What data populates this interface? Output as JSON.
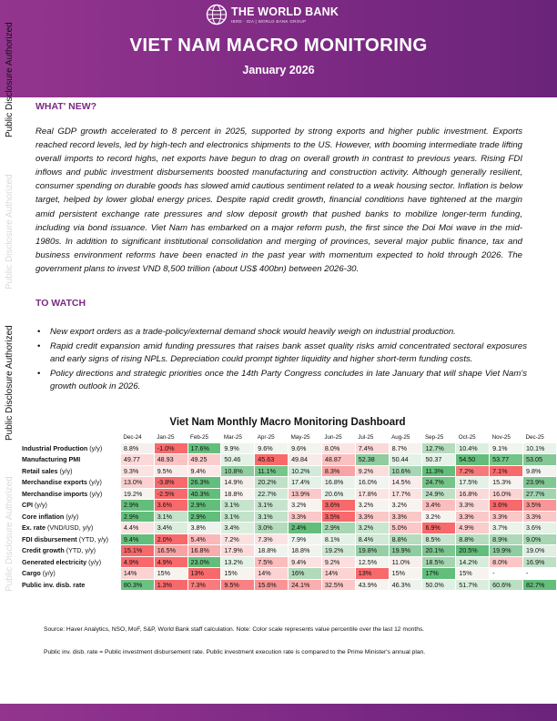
{
  "header": {
    "org_name": "THE WORLD BANK",
    "org_sub": "IBRD · IDA | WORLD BANK GROUP",
    "title": "VIET NAM MACRO MONITORING",
    "date": "January 2026"
  },
  "side_label": "Public Disclosure Authorized",
  "whats_new": {
    "heading": "WHAT' NEW?",
    "text": "Real GDP growth accelerated to 8 percent in 2025, supported by strong exports and higher public investment. Exports reached record levels, led by high-tech and electronics shipments to the US. However, with booming intermediate trade lifting overall imports to record highs, net exports have begun to drag on overall growth in contrast to previous years. Rising FDI inflows and public investment disbursements boosted manufacturing and construction activity. Although generally resilient, consumer spending on durable goods has slowed amid cautious sentiment related to a weak housing sector. Inflation is below target, helped by lower global energy prices. Despite rapid credit growth, financial conditions have tightened at the margin amid persistent exchange rate pressures and slow deposit growth that pushed banks to mobilize longer-term funding, including via bond issuance. Viet Nam has embarked on a major reform push, the first since the Doi Moi wave in the mid-1980s. In addition to significant institutional consolidation and merging of provinces, several major public finance, tax and business environment reforms have been enacted in the past year with momentum expected to hold through 2026. The government plans to invest VND 8,500 trillion (about US$ 400bn) between 2026-30."
  },
  "to_watch": {
    "heading": "TO WATCH",
    "items": [
      "New export orders as a trade-policy/external demand shock would heavily weigh on industrial production.",
      "Rapid credit expansion amid funding pressures that raises bank asset quality risks amid concentrated sectoral exposures and early signs of rising NPLs. Depreciation could prompt tighter liquidity and higher short-term funding costs.",
      "Policy directions and strategic priorities once the 14th Party Congress concludes in late January that will shape Viet Nam's growth outlook in 2026."
    ]
  },
  "dashboard": {
    "title": "Viet Nam Monthly Macro Monitoring Dashboard",
    "columns": [
      "Dec-24",
      "Jan-25",
      "Feb-25",
      "Mar-25",
      "Apr-25",
      "May-25",
      "Jun-25",
      "Jul-25",
      "Aug-25",
      "Sep-25",
      "Oct-25",
      "Nov-25",
      "Dec-25"
    ],
    "rows": [
      {
        "label": "Industrial Production",
        "unit": "(y/y)",
        "values": [
          "8.8%",
          "-1.0%",
          "17.6%",
          "9.9%",
          "9.6%",
          "9.6%",
          "8.0%",
          "7.4%",
          "8.7%",
          "12.7%",
          "10.4%",
          "9.1%",
          "10.1%"
        ],
        "colors": [
          "#f5f0ed",
          "#f8696b",
          "#63be7b",
          "#eef5ee",
          "#f2f4ef",
          "#f2f4ef",
          "#fbe5e4",
          "#fbd9d9",
          "#f7f2ef",
          "#b5dcbd",
          "#dcefdf",
          "#f1f4ef",
          "#e8f3ea"
        ]
      },
      {
        "label": "Manufacturing PMI",
        "unit": "",
        "values": [
          "49.77",
          "48.93",
          "49.25",
          "50.46",
          "45.63",
          "49.84",
          "48.87",
          "52.38",
          "50.44",
          "50.37",
          "54.50",
          "53.77",
          "53.05"
        ],
        "colors": [
          "#fbd9d9",
          "#fbc3c3",
          "#fbcccc",
          "#e2f1e5",
          "#f8696b",
          "#f8eae9",
          "#fbc0c0",
          "#8fcc9f",
          "#e3f1e6",
          "#e6f2e8",
          "#63be7b",
          "#72c487",
          "#84c896"
        ]
      },
      {
        "label": "Retail sales",
        "unit": "(y/y)",
        "values": [
          "9.3%",
          "9.5%",
          "9.4%",
          "10.8%",
          "11.1%",
          "10.2%",
          "8.3%",
          "9.2%",
          "10.6%",
          "11.3%",
          "7.2%",
          "7.1%",
          "9.8%"
        ],
        "colors": [
          "#fbe3e2",
          "#faeceb",
          "#fbe8e7",
          "#90cd9f",
          "#76c589",
          "#d2eada",
          "#f9a3a4",
          "#fadedd",
          "#a7d6b4",
          "#63be7b",
          "#f8797b",
          "#f8696b",
          "#f2f4ef"
        ]
      },
      {
        "label": "Merchandise exports",
        "unit": "(y/y)",
        "values": [
          "13.0%",
          "-3.8%",
          "26.3%",
          "14.9%",
          "20.2%",
          "17.4%",
          "16.8%",
          "16.0%",
          "14.5%",
          "24.7%",
          "17.5%",
          "15.3%",
          "23.9%"
        ],
        "colors": [
          "#fcd0d0",
          "#f8696b",
          "#63be7b",
          "#f5efec",
          "#c0e1c7",
          "#e4f1e7",
          "#eaf3eb",
          "#f2f4ef",
          "#faeceb",
          "#75c488",
          "#e3f1e6",
          "#f7f4f0",
          "#80c893"
        ]
      },
      {
        "label": "Merchandise imports",
        "unit": "(y/y)",
        "values": [
          "19.2%",
          "-2.5%",
          "40.3%",
          "18.8%",
          "22.7%",
          "13.9%",
          "20.6%",
          "17.8%",
          "17.7%",
          "24.9%",
          "16.8%",
          "16.0%",
          "27.7%"
        ],
        "colors": [
          "#f7f4f0",
          "#f8696b",
          "#63be7b",
          "#f9f3f0",
          "#d2e9d8",
          "#fcc9c9",
          "#e8f3ea",
          "#fbe5e4",
          "#fbe3e2",
          "#bfe0c6",
          "#fbdad9",
          "#fbd4d3",
          "#a3d4b0"
        ]
      },
      {
        "label": "CPI",
        "unit": "(y/y)",
        "values": [
          "2.9%",
          "3.6%",
          "2.9%",
          "3.1%",
          "3.1%",
          "3.2%",
          "3.6%",
          "3.2%",
          "3.2%",
          "3.4%",
          "3.3%",
          "3.6%",
          "3.5%"
        ],
        "colors": [
          "#63be7b",
          "#f8696b",
          "#63be7b",
          "#c6e4cd",
          "#c6e4cd",
          "#f7f4f0",
          "#f8696b",
          "#f7f4f0",
          "#f7f4f0",
          "#fbbdbd",
          "#fbd8d8",
          "#f8696b",
          "#f99596"
        ]
      },
      {
        "label": "Core inflation",
        "unit": "(y/y)",
        "values": [
          "2.9%",
          "3.1%",
          "2.9%",
          "3.1%",
          "3.1%",
          "3.3%",
          "3.5%",
          "3.3%",
          "3.3%",
          "3.2%",
          "3.3%",
          "3.3%",
          "3.3%"
        ],
        "colors": [
          "#63be7b",
          "#c2e2c9",
          "#63be7b",
          "#c2e2c9",
          "#c2e2c9",
          "#fbc8c8",
          "#f8696b",
          "#fbc8c8",
          "#fbc8c8",
          "#f7f4f0",
          "#fbc8c8",
          "#fbc8c8",
          "#fbc8c8"
        ]
      },
      {
        "label": "Ex. rate",
        "unit": "(VND/USD, y/y)",
        "values": [
          "4.4%",
          "3.4%",
          "3.8%",
          "3.4%",
          "3.0%",
          "2.4%",
          "2.9%",
          "3.2%",
          "5.0%",
          "6.9%",
          "4.9%",
          "3.7%",
          "3.6%"
        ],
        "colors": [
          "#fbe3e2",
          "#dbeede",
          "#eef4ed",
          "#dbeede",
          "#b4dbbd",
          "#63be7b",
          "#a8d6b3",
          "#cae6d0",
          "#fbc7c7",
          "#f8696b",
          "#fbcccc",
          "#ebf3eb",
          "#e6f2e8"
        ]
      },
      {
        "label": "FDI disbursement",
        "unit": "(YTD, y/y)",
        "values": [
          "9.4%",
          "2.0%",
          "5.4%",
          "7.2%",
          "7.3%",
          "7.9%",
          "8.1%",
          "8.4%",
          "8.8%",
          "8.5%",
          "8.8%",
          "8.9%",
          "9.0%"
        ],
        "colors": [
          "#63be7b",
          "#f8696b",
          "#fbb8b8",
          "#fae1e0",
          "#fae3e2",
          "#f0f4ee",
          "#e4f1e6",
          "#d1e9d7",
          "#b5dcbe",
          "#c9e5cf",
          "#b5dcbe",
          "#aed9b8",
          "#a6d6b2"
        ]
      },
      {
        "label": "Credit growth",
        "unit": "(YTD, y/y)",
        "values": [
          "15.1%",
          "16.5%",
          "16.8%",
          "17.9%",
          "18.8%",
          "18.8%",
          "19.2%",
          "19.8%",
          "19.9%",
          "20.1%",
          "20.5%",
          "19.9%",
          "19.0%"
        ],
        "colors": [
          "#f8696b",
          "#f9a2a3",
          "#f9adad",
          "#fbdcdb",
          "#f1f4ee",
          "#f1f4ee",
          "#cde8d3",
          "#97cfa5",
          "#8fcc9f",
          "#7cc68f",
          "#63be7b",
          "#8fcc9f",
          "#dfefe3"
        ]
      },
      {
        "label": "Generated electricity",
        "unit": "(y/y)",
        "values": [
          "4.9%",
          "4.9%",
          "23.0%",
          "13.2%",
          "7.5%",
          "9.4%",
          "9.2%",
          "12.5%",
          "11.0%",
          "18.5%",
          "14.2%",
          "8.0%",
          "16.9%"
        ],
        "colors": [
          "#f8696b",
          "#f8696b",
          "#63be7b",
          "#e3f1e6",
          "#fbbcbc",
          "#fbe2e1",
          "#fbdedd",
          "#f2f4ef",
          "#f8efed",
          "#a4d5b0",
          "#d7ecdc",
          "#fbc6c6",
          "#bde0c5"
        ]
      },
      {
        "label": "Cargo",
        "unit": "(y/y)",
        "values": [
          "14%",
          "15%",
          "13%",
          "15%",
          "14%",
          "16%",
          "14%",
          "13%",
          "15%",
          "17%",
          "15%",
          "-",
          "-"
        ],
        "colors": [
          "#fbd3d3",
          "#f7f4f0",
          "#f8696b",
          "#f7f4f0",
          "#fbd3d3",
          "#b1dabb",
          "#fbd3d3",
          "#f8696b",
          "#f7f4f0",
          "#63be7b",
          "#f7f4f0",
          "#ffffff",
          "#ffffff"
        ]
      },
      {
        "label": "Public inv. disb. rate",
        "unit": "",
        "values": [
          "80.3%",
          "1.3%",
          "7.3%",
          "9.5%",
          "15.6%",
          "24.1%",
          "32.5%",
          "43.9%",
          "46.3%",
          "50.0%",
          "51.7%",
          "60.6%",
          "82.7%"
        ],
        "colors": [
          "#6ac181",
          "#f8696b",
          "#f97b7d",
          "#f98183",
          "#f99496",
          "#faaeaf",
          "#fbc7c7",
          "#f7f4f0",
          "#eef4ed",
          "#e1f0e4",
          "#dbeede",
          "#bbdfc3",
          "#63be7b"
        ]
      }
    ]
  },
  "notes": {
    "source": "Source: Haver Analytics, NSO, MoF, S&P, World Bank staff calculation. Note: Color scale represents value percentile over the last 12 months.",
    "definition": "Public inv. disb. rate = Public investment disbursement rate. Public investment execution rate is compared to the Prime Minister's annual plan."
  }
}
